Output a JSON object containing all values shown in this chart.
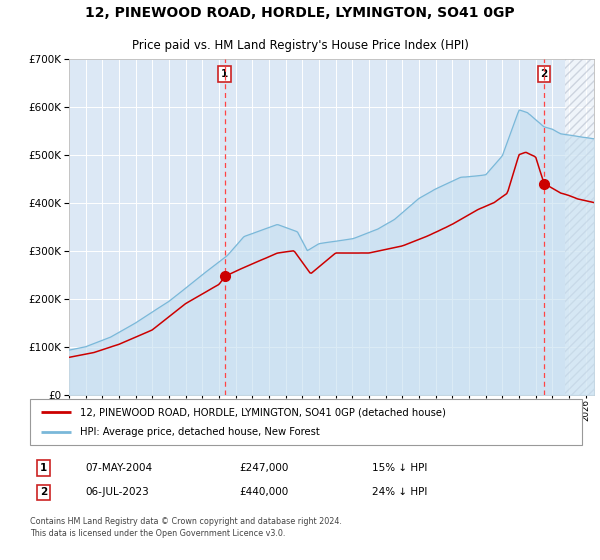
{
  "title": "12, PINEWOOD ROAD, HORDLE, LYMINGTON, SO41 0GP",
  "subtitle": "Price paid vs. HM Land Registry's House Price Index (HPI)",
  "legend_line1": "12, PINEWOOD ROAD, HORDLE, LYMINGTON, SO41 0GP (detached house)",
  "legend_line2": "HPI: Average price, detached house, New Forest",
  "marker1_date": "07-MAY-2004",
  "marker1_price": 247000,
  "marker1_hpi_diff": "15% ↓ HPI",
  "marker2_date": "06-JUL-2023",
  "marker2_price": 440000,
  "marker2_hpi_diff": "24% ↓ HPI",
  "footnote1": "Contains HM Land Registry data © Crown copyright and database right 2024.",
  "footnote2": "This data is licensed under the Open Government Licence v3.0.",
  "hpi_color": "#7ab8d9",
  "hpi_fill_color": "#c5dff0",
  "price_color": "#cc0000",
  "marker_color": "#cc0000",
  "plot_bg": "#dce8f5",
  "grid_color": "#ffffff",
  "fig_bg": "#ffffff",
  "hatch_color": "#c0c8d0",
  "ylim": [
    0,
    700000
  ],
  "xlim_start": 1995.0,
  "xlim_end": 2026.5,
  "hatch_start": 2024.75
}
